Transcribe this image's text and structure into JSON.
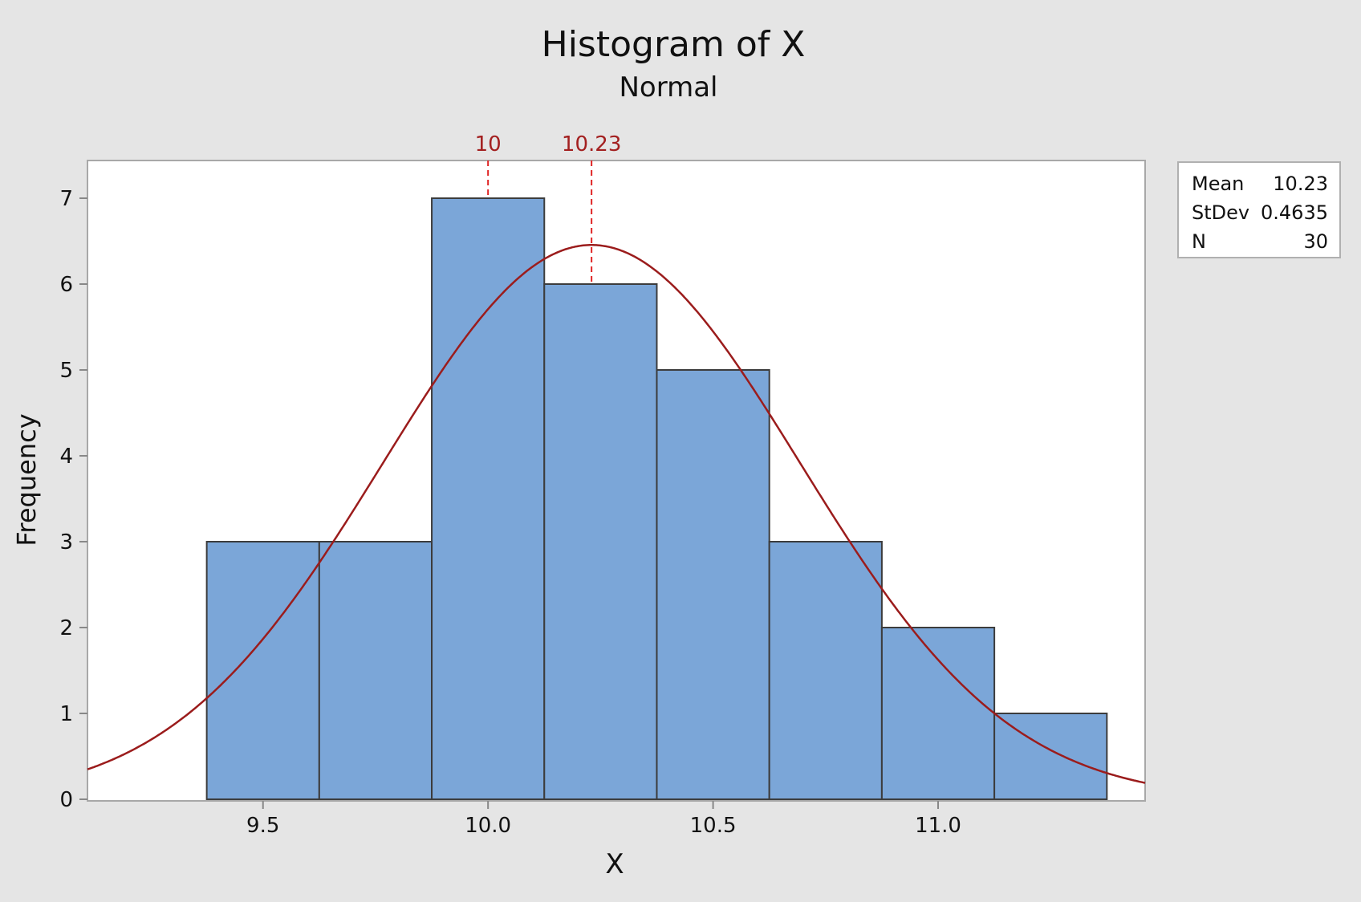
{
  "chart_data": {
    "type": "bar",
    "title": "Histogram of X",
    "subtitle": "Normal",
    "xlabel": "X",
    "ylabel": "Frequency",
    "bin_edges": [
      9.375,
      9.625,
      9.875,
      10.125,
      10.375,
      10.625,
      10.875,
      11.125,
      11.375
    ],
    "values": [
      3,
      3,
      7,
      6,
      5,
      3,
      2,
      1
    ],
    "xlim": [
      9.11,
      11.46
    ],
    "ylim": [
      0,
      7.45
    ],
    "xticks": [
      9.5,
      10.0,
      10.5,
      11.0
    ],
    "xtick_labels": [
      "9.5",
      "10.0",
      "10.5",
      "11.0"
    ],
    "yticks": [
      0,
      1,
      2,
      3,
      4,
      5,
      6,
      7
    ],
    "ytick_labels": [
      "0",
      "1",
      "2",
      "3",
      "4",
      "5",
      "6",
      "7"
    ],
    "fit": {
      "distribution": "normal",
      "mean": 10.23,
      "stdev": 0.4635,
      "n": 30,
      "bin_width": 0.25
    },
    "reference_lines": [
      {
        "value": 10,
        "label": "10"
      },
      {
        "value": 10.23,
        "label": "10.23"
      }
    ],
    "grid": false,
    "legend_placement": "right-top",
    "colors": {
      "bar": "#7ba6d8",
      "bar_edge": "#3c3c3c",
      "curve": "#9b1c1c",
      "ref_line": "#e02424",
      "ref_label": "#a32020"
    }
  },
  "legend": [
    {
      "label": "Mean",
      "value": "10.23"
    },
    {
      "label": "StDev",
      "value": "0.4635"
    },
    {
      "label": "N",
      "value": "30"
    }
  ]
}
